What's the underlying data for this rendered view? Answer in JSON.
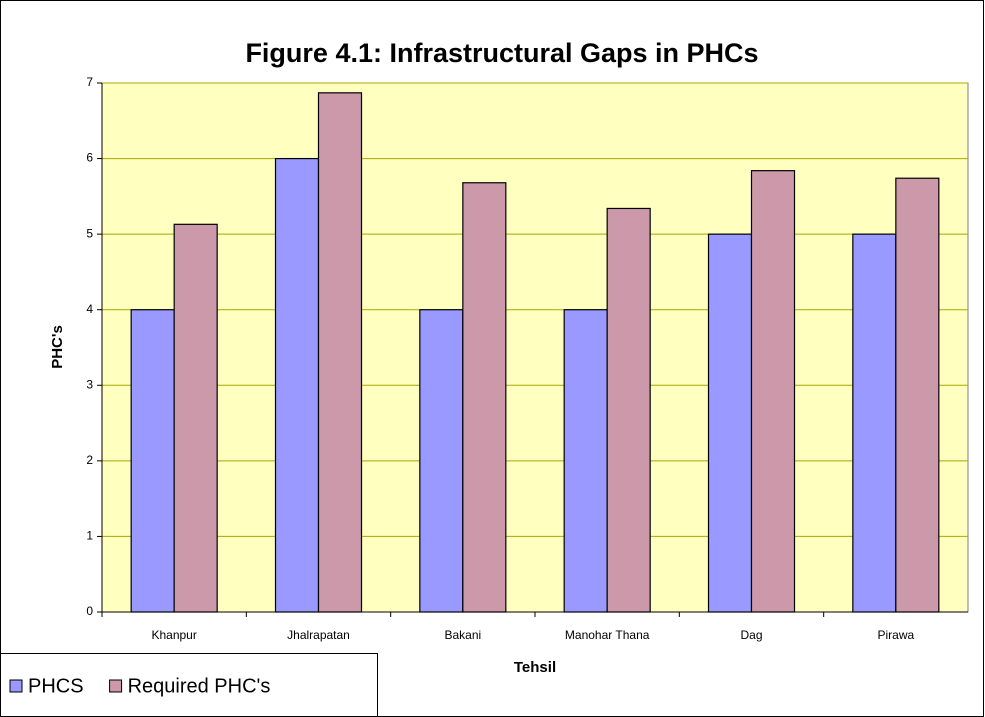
{
  "chart_data": {
    "type": "bar",
    "title": "Figure 4.1: Infrastructural Gaps in PHCs",
    "x_label": "Tehsil",
    "y_label": "PHC's",
    "categories": [
      "Khanpur",
      "Jhalrapatan",
      "Bakani",
      "Manohar Thana",
      "Dag",
      "Pirawa"
    ],
    "series": [
      {
        "name": "PHCS",
        "color": "#9999ff",
        "values": [
          4,
          6,
          4,
          4,
          5,
          5
        ]
      },
      {
        "name": "Required PHC's",
        "color": "#cc99aa",
        "values": [
          5.13,
          6.87,
          5.68,
          5.34,
          5.84,
          5.74
        ]
      }
    ],
    "ylim": [
      0,
      7
    ],
    "yticks": [
      0,
      1,
      2,
      3,
      4,
      5,
      6,
      7
    ],
    "grid": true
  }
}
